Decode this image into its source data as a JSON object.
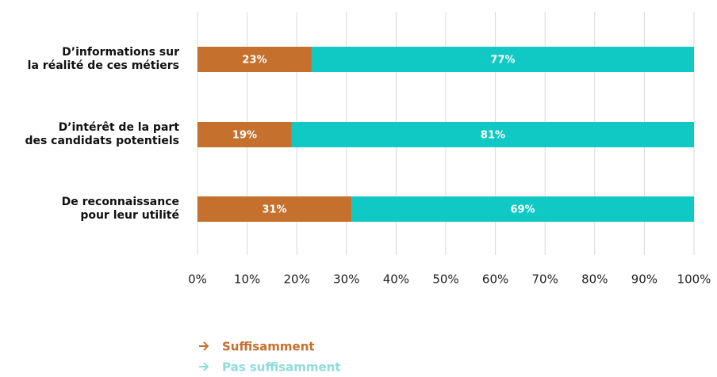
{
  "chart_data": {
    "type": "stacked-bar-horizontal",
    "categories": [
      "D’informations sur\nla réalité de ces métiers",
      "D’intérêt de la part\ndes candidats potentiels",
      "De reconnaissance\npour leur utilité"
    ],
    "series": [
      {
        "name": "Suffisamment",
        "color": "#c5702c",
        "legend_color": "#c5702c",
        "values": [
          23,
          19,
          31
        ],
        "value_labels": [
          "23%",
          "19%",
          "31%"
        ]
      },
      {
        "name": "Pas suffisamment",
        "color": "#10c8c4",
        "legend_color": "#8ddcdc",
        "values": [
          77,
          81,
          69
        ],
        "value_labels": [
          "77%",
          "81%",
          "69%"
        ]
      }
    ],
    "xlim": [
      0,
      100
    ],
    "xticks": [
      {
        "value": 0,
        "label": "0%"
      },
      {
        "value": 10,
        "label": "10%"
      },
      {
        "value": 20,
        "label": "20%"
      },
      {
        "value": 30,
        "label": "30%"
      },
      {
        "value": 40,
        "label": "40%"
      },
      {
        "value": 50,
        "label": "50%"
      },
      {
        "value": 60,
        "label": "60%"
      },
      {
        "value": 70,
        "label": "70%"
      },
      {
        "value": 80,
        "label": "80%"
      },
      {
        "value": 90,
        "label": "90%"
      },
      {
        "value": 100,
        "label": "100%"
      }
    ],
    "grid": true
  }
}
